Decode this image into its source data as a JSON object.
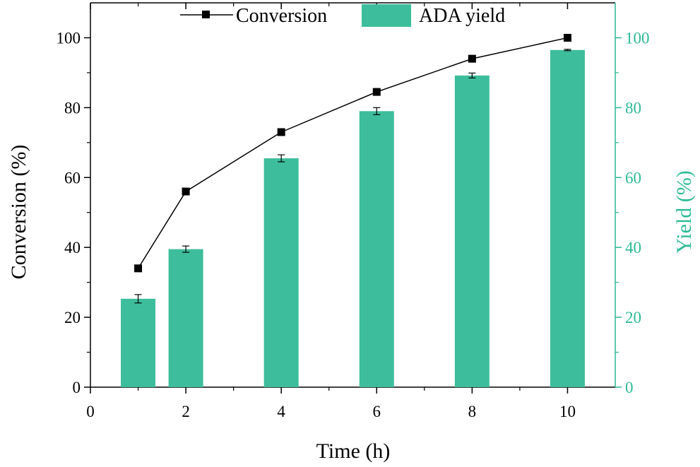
{
  "chart_data": {
    "type": "bar+line",
    "x_axis": {
      "label": "Time (h)",
      "range": [
        0,
        11
      ],
      "ticks": [
        0,
        2,
        4,
        6,
        8,
        10
      ],
      "tick_labels": [
        "0",
        "2",
        "4",
        "6",
        "8",
        "10"
      ]
    },
    "y_axis_left": {
      "label": "Conversion  (%)",
      "range": [
        0,
        110
      ],
      "ticks": [
        0,
        20,
        40,
        60,
        80,
        100
      ],
      "tick_labels": [
        "0",
        "20",
        "40",
        "60",
        "80",
        "100"
      ]
    },
    "y_axis_right": {
      "label": "Yield (%)",
      "range": [
        0,
        110
      ],
      "ticks": [
        0,
        20,
        40,
        60,
        80,
        100
      ],
      "tick_labels": [
        "0",
        "20",
        "40",
        "60",
        "80",
        "100"
      ]
    },
    "x": [
      1,
      2,
      4,
      6,
      8,
      10
    ],
    "series": [
      {
        "name": "Conversion",
        "type": "line",
        "marker": "square",
        "axis": "left",
        "color": "#000000",
        "values": [
          34,
          56,
          73,
          84.5,
          94,
          100
        ]
      },
      {
        "name": "ADA yield",
        "type": "bar",
        "axis": "right",
        "color": "#3dbd9b",
        "values": [
          25.3,
          39.5,
          65.5,
          79,
          89.2,
          96.5
        ],
        "error": [
          1.2,
          0.9,
          1,
          1,
          0.7,
          0.2
        ]
      }
    ],
    "legend": {
      "position": "top",
      "entries": [
        "Conversion",
        "ADA yield"
      ]
    },
    "grid": false
  },
  "colors": {
    "right_axis": "#2cb995",
    "bar_fill": "#3dbd9b",
    "line": "#000000"
  }
}
